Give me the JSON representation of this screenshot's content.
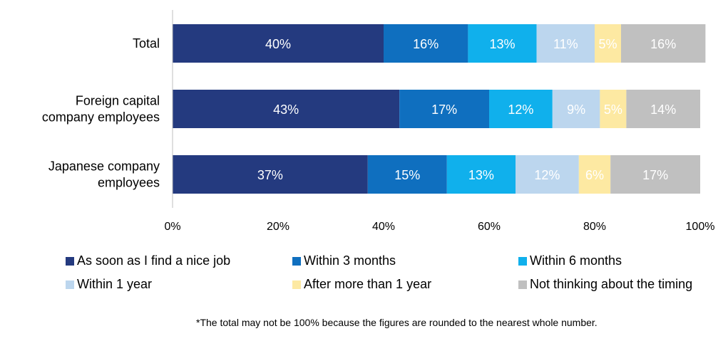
{
  "chart_data": {
    "type": "bar",
    "orientation": "horizontal",
    "stacked": true,
    "categories": [
      "Total",
      "Foreign capital company employees",
      "Japanese company employees"
    ],
    "category_lines": [
      [
        "Total"
      ],
      [
        "Foreign capital",
        "company employees"
      ],
      [
        "Japanese company",
        "employees"
      ]
    ],
    "series": [
      {
        "name": "As soon as I find a nice job",
        "values": [
          40,
          43,
          37
        ],
        "labels": [
          "40%",
          "43%",
          "37%"
        ],
        "color": "#243a7f",
        "label_color": "#ffffff"
      },
      {
        "name": "Within 3 months",
        "values": [
          16,
          17,
          15
        ],
        "labels": [
          "16%",
          "17%",
          "15%"
        ],
        "color": "#0f6fbf",
        "label_color": "#ffffff"
      },
      {
        "name": "Within 6 months",
        "values": [
          13,
          12,
          13
        ],
        "labels": [
          "13%",
          "12%",
          "13%"
        ],
        "color": "#10b0ec",
        "label_color": "#ffffff"
      },
      {
        "name": "Within 1 year",
        "values": [
          11,
          9,
          12
        ],
        "labels": [
          "11%",
          "9%",
          "12%"
        ],
        "color": "#bcd6ee",
        "label_color": "#ffffff"
      },
      {
        "name": "After more than 1 year",
        "values": [
          5,
          5,
          6
        ],
        "labels": [
          "5%",
          "5%",
          "6%"
        ],
        "color": "#fde9a2",
        "label_color": "#ffffff"
      },
      {
        "name": "Not thinking about the timing",
        "values": [
          16,
          14,
          17
        ],
        "labels": [
          "16%",
          "14%",
          "17%"
        ],
        "color": "#c0c0c0",
        "label_color": "#ffffff"
      }
    ],
    "xlim": [
      0,
      100
    ],
    "xticks": [
      "0%",
      "20%",
      "40%",
      "60%",
      "80%",
      "100%"
    ],
    "xlabel": "",
    "ylabel": "",
    "grid": false,
    "legend_position": "bottom"
  },
  "footnote": "*The total may not be 100% because the figures are rounded to the nearest whole number."
}
